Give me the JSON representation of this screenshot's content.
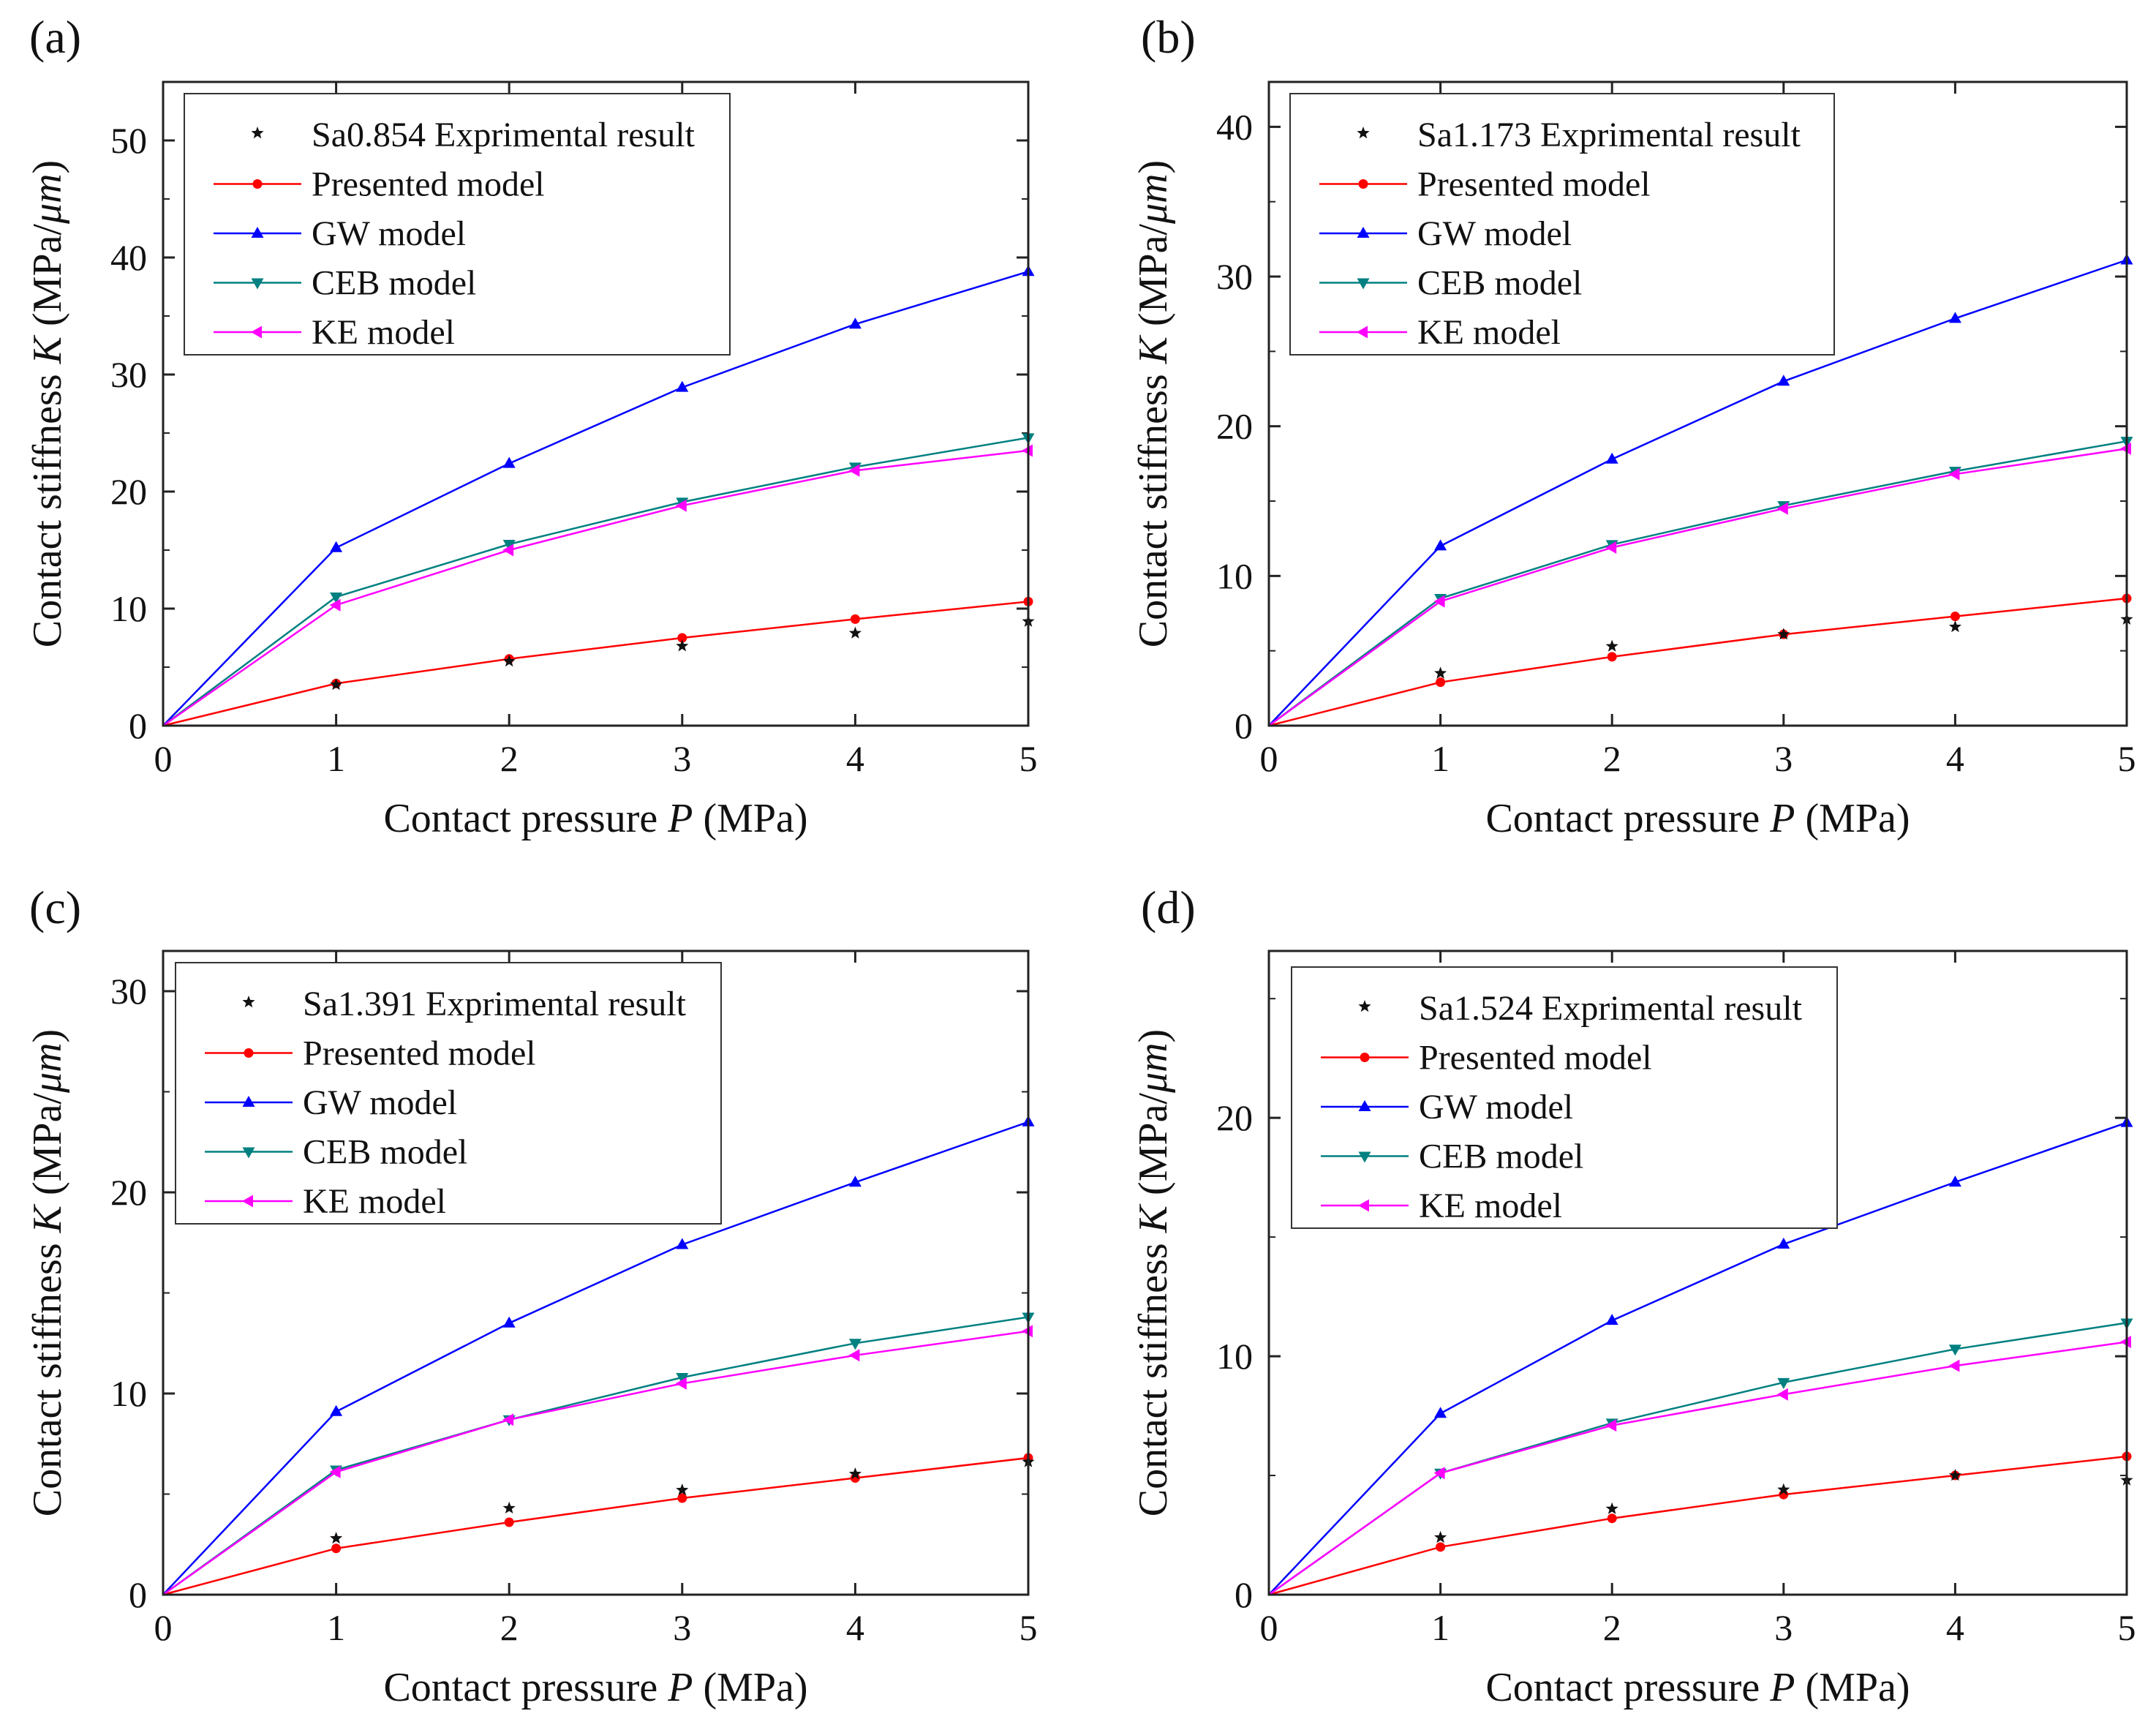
{
  "figure": {
    "x_label_prefix": "Contact pressure ",
    "x_label_var": "P",
    "x_label_suffix": " (MPa)",
    "y_label_prefix": "Contact stiffness ",
    "y_label_var": "K",
    "y_label_suffix": " (MPa/",
    "y_label_unit": "μm",
    "y_label_close": ")"
  },
  "series_styles": [
    {
      "name": "Presented model",
      "color": "#ff0000",
      "marker": "circle"
    },
    {
      "name": "GW model",
      "color": "#0000ff",
      "marker": "triangle-up"
    },
    {
      "name": "CEB model",
      "color": "#008080",
      "marker": "triangle-down"
    },
    {
      "name": "KE model",
      "color": "#ff00ff",
      "marker": "triangle-left"
    }
  ],
  "chart_data": [
    {
      "panel": "(a)",
      "type": "line",
      "x": [
        0,
        1,
        2,
        3,
        4,
        5
      ],
      "xlim": [
        0,
        5
      ],
      "ylim": [
        0,
        55
      ],
      "xticks": [
        0,
        1,
        2,
        3,
        4,
        5
      ],
      "yticks": [
        0,
        10,
        20,
        30,
        40,
        50
      ],
      "xlabel": "Contact pressure P (MPa)",
      "ylabel": "Contact stiffness K (MPa/μm)",
      "experimental": {
        "name": "Sa0.854 Exprimental result",
        "x": [
          1,
          2,
          3,
          4,
          5
        ],
        "values": [
          3.5,
          5.5,
          6.8,
          7.9,
          8.9
        ]
      },
      "series": [
        {
          "name": "Presented model",
          "values": [
            0,
            3.6,
            5.7,
            7.5,
            9.1,
            10.6
          ]
        },
        {
          "name": "GW model",
          "values": [
            0,
            15.2,
            22.4,
            28.9,
            34.3,
            38.8
          ]
        },
        {
          "name": "CEB model",
          "values": [
            0,
            11.0,
            15.5,
            19.1,
            22.1,
            24.6
          ]
        },
        {
          "name": "KE model",
          "values": [
            0,
            10.3,
            15.0,
            18.8,
            21.8,
            23.5
          ]
        }
      ]
    },
    {
      "panel": "(b)",
      "type": "line",
      "x": [
        0,
        1,
        2,
        3,
        4,
        5
      ],
      "xlim": [
        0,
        5
      ],
      "ylim": [
        0,
        43
      ],
      "xticks": [
        0,
        1,
        2,
        3,
        4,
        5
      ],
      "yticks": [
        0,
        10,
        20,
        30,
        40
      ],
      "xlabel": "Contact pressure P (MPa)",
      "ylabel": "Contact stiffness K (MPa/μm)",
      "experimental": {
        "name": "Sa1.173 Exprimental result",
        "x": [
          1,
          2,
          3,
          4,
          5
        ],
        "values": [
          3.5,
          5.3,
          6.1,
          6.6,
          7.1
        ]
      },
      "series": [
        {
          "name": "Presented model",
          "values": [
            0,
            2.9,
            4.6,
            6.1,
            7.3,
            8.5
          ]
        },
        {
          "name": "GW model",
          "values": [
            0,
            12.0,
            17.8,
            23.0,
            27.2,
            31.1
          ]
        },
        {
          "name": "CEB model",
          "values": [
            0,
            8.5,
            12.1,
            14.7,
            17.0,
            19.0
          ]
        },
        {
          "name": "KE model",
          "values": [
            0,
            8.3,
            11.9,
            14.5,
            16.8,
            18.5
          ]
        }
      ]
    },
    {
      "panel": "(c)",
      "type": "line",
      "x": [
        0,
        1,
        2,
        3,
        4,
        5
      ],
      "xlim": [
        0,
        5
      ],
      "ylim": [
        0,
        32
      ],
      "xticks": [
        0,
        1,
        2,
        3,
        4,
        5
      ],
      "yticks": [
        0,
        10,
        20,
        30
      ],
      "xlabel": "Contact pressure P (MPa)",
      "ylabel": "Contact stiffness K (MPa/μm)",
      "experimental": {
        "name": "Sa1.391 Exprimental result",
        "x": [
          1,
          2,
          3,
          4,
          5
        ],
        "values": [
          2.8,
          4.3,
          5.2,
          6.0,
          6.6
        ]
      },
      "series": [
        {
          "name": "Presented model",
          "values": [
            0,
            2.3,
            3.6,
            4.8,
            5.8,
            6.8
          ]
        },
        {
          "name": "GW model",
          "values": [
            0,
            9.1,
            13.5,
            17.4,
            20.5,
            23.5
          ]
        },
        {
          "name": "CEB model",
          "values": [
            0,
            6.2,
            8.7,
            10.8,
            12.5,
            13.8
          ]
        },
        {
          "name": "KE model",
          "values": [
            0,
            6.1,
            8.7,
            10.5,
            11.9,
            13.1
          ]
        }
      ]
    },
    {
      "panel": "(d)",
      "type": "line",
      "x": [
        0,
        1,
        2,
        3,
        4,
        5
      ],
      "xlim": [
        0,
        5
      ],
      "ylim": [
        0,
        27
      ],
      "xticks": [
        0,
        1,
        2,
        3,
        4,
        5
      ],
      "yticks": [
        0,
        10,
        20
      ],
      "xlabel": "Contact pressure P (MPa)",
      "ylabel": "Contact stiffness K (MPa/μm)",
      "experimental": {
        "name": "Sa1.524 Exprimental result",
        "x": [
          1,
          2,
          3,
          4,
          5
        ],
        "values": [
          2.4,
          3.6,
          4.4,
          5.0,
          4.8
        ]
      },
      "series": [
        {
          "name": "Presented model",
          "values": [
            0,
            2.0,
            3.2,
            4.2,
            5.0,
            5.8
          ]
        },
        {
          "name": "GW model",
          "values": [
            0,
            7.6,
            11.5,
            14.7,
            17.3,
            19.8
          ]
        },
        {
          "name": "CEB model",
          "values": [
            0,
            5.1,
            7.2,
            8.9,
            10.3,
            11.4
          ]
        },
        {
          "name": "KE model",
          "values": [
            0,
            5.1,
            7.1,
            8.4,
            9.6,
            10.6
          ]
        }
      ]
    }
  ]
}
